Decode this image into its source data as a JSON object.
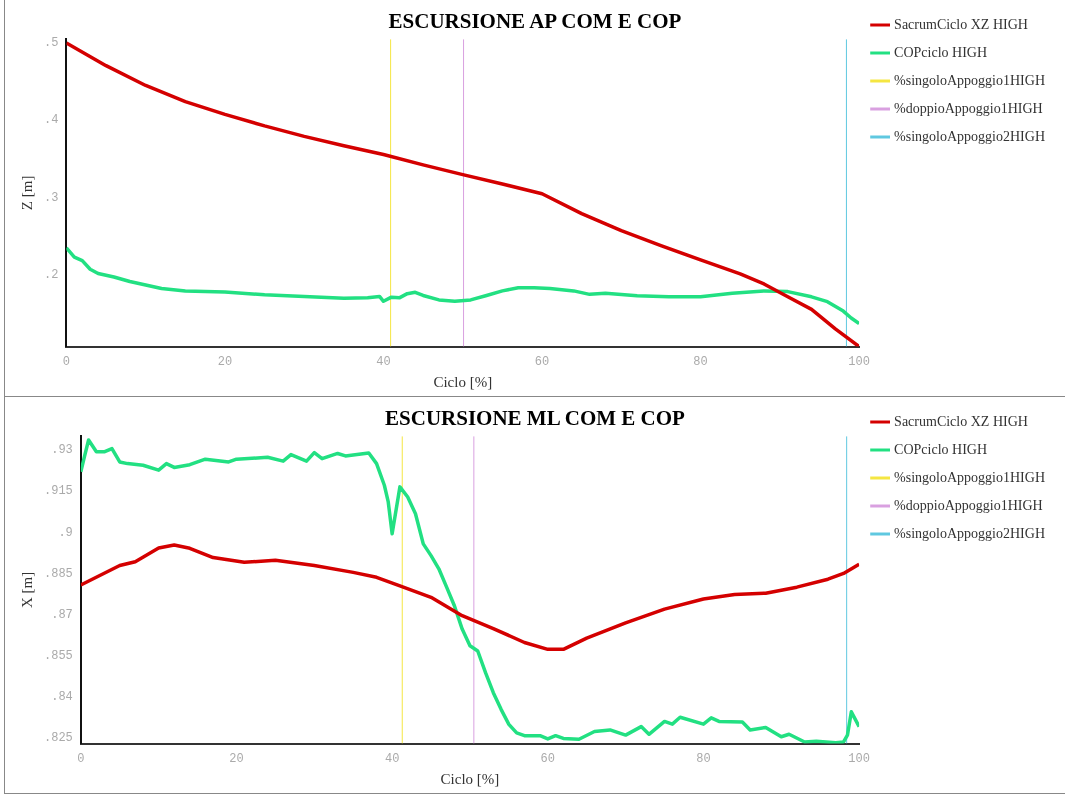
{
  "chart_data": [
    {
      "type": "line",
      "title": "ESCURSIONE AP COM E COP",
      "xlabel": "Ciclo [%]",
      "ylabel": "Z [m]",
      "xlim": [
        0,
        100
      ],
      "xticks": [
        0,
        20,
        40,
        60,
        80,
        100
      ],
      "ylim": [
        0.1066,
        0.505
      ],
      "yticks": [
        {
          "value": 0.2,
          "label": ".2"
        },
        {
          "value": 0.3,
          "label": ".3"
        },
        {
          "value": 0.4,
          "label": ".4"
        },
        {
          "value": 0.5,
          "label": ".5"
        }
      ],
      "grid": false,
      "legend": "right",
      "marker": "none",
      "line_style": "solid",
      "series": [
        {
          "name": "SacrumCiclo XZ HIGH",
          "color": "#d40000",
          "x": [
            0,
            5,
            10,
            15,
            20,
            25,
            30,
            35,
            40,
            45,
            50,
            55,
            60,
            65,
            70,
            75,
            80,
            85,
            88,
            91,
            94,
            97,
            100
          ],
          "values": [
            0.5,
            0.4707,
            0.445,
            0.4242,
            0.4075,
            0.3926,
            0.3791,
            0.3669,
            0.3556,
            0.3421,
            0.3295,
            0.3173,
            0.3047,
            0.2789,
            0.2568,
            0.2374,
            0.219,
            0.2009,
            0.1878,
            0.1711,
            0.1549,
            0.1296,
            0.1066
          ]
        },
        {
          "name": "COPciclo HIGH",
          "color": "#22e082",
          "x": [
            0,
            1,
            2,
            3,
            4,
            6,
            8,
            10,
            12,
            15,
            20,
            25,
            30,
            35,
            38,
            39.5,
            40,
            41,
            42,
            43,
            44,
            45,
            47,
            49,
            51,
            53,
            55,
            57,
            59,
            61,
            64,
            66,
            68,
            72,
            76,
            80,
            84,
            88,
            91,
            94,
            96,
            98,
            99,
            100
          ],
          "values": [
            0.2347,
            0.2226,
            0.2181,
            0.2068,
            0.2014,
            0.1968,
            0.191,
            0.1865,
            0.182,
            0.1788,
            0.1774,
            0.1738,
            0.1716,
            0.1693,
            0.1698,
            0.1716,
            0.1653,
            0.1707,
            0.1698,
            0.1752,
            0.177,
            0.1729,
            0.1671,
            0.1653,
            0.1671,
            0.1729,
            0.1788,
            0.1829,
            0.1829,
            0.182,
            0.1788,
            0.1743,
            0.1756,
            0.1725,
            0.1711,
            0.1711,
            0.1756,
            0.1788,
            0.1779,
            0.1711,
            0.1648,
            0.1526,
            0.1436,
            0.1364
          ]
        },
        {
          "name": "%singoloAppoggio1HIGH",
          "color": "#f5e642",
          "x": [
            40.9,
            40.9
          ],
          "values": [
            0.1066,
            0.505
          ]
        },
        {
          "name": "%doppioAppoggio1HIGH",
          "color": "#d9a0e0",
          "x": [
            50.1,
            50.1
          ],
          "values": [
            0.1066,
            0.505
          ]
        },
        {
          "name": "%singoloAppoggio2HIGH",
          "color": "#5fc8e0",
          "x": [
            98.4,
            98.4
          ],
          "values": [
            0.1066,
            0.505
          ]
        }
      ]
    },
    {
      "type": "line",
      "title": "ESCURSIONE ML COM E COP",
      "xlabel": "Ciclo [%]",
      "ylabel": "X [m]",
      "xlim": [
        0,
        100
      ],
      "xticks": [
        0,
        20,
        40,
        60,
        80,
        100
      ],
      "ylim": [
        0.8229,
        0.9351
      ],
      "yticks": [
        {
          "value": 0.825,
          "label": ".825"
        },
        {
          "value": 0.84,
          "label": ".84"
        },
        {
          "value": 0.855,
          "label": ".855"
        },
        {
          "value": 0.87,
          "label": ".87"
        },
        {
          "value": 0.885,
          "label": ".885"
        },
        {
          "value": 0.9,
          "label": ".9"
        },
        {
          "value": 0.915,
          "label": ".915"
        },
        {
          "value": 0.93,
          "label": ".93"
        }
      ],
      "grid": false,
      "legend": "right",
      "marker": "none",
      "line_style": "solid",
      "series": [
        {
          "name": "SacrumCiclo XZ HIGH",
          "color": "#d40000",
          "x": [
            0,
            5,
            7,
            10,
            12,
            14,
            17,
            21,
            25,
            30,
            35,
            38,
            41,
            45,
            49,
            53,
            57,
            60,
            62,
            65,
            70,
            75,
            80,
            84,
            88,
            92,
            96,
            98,
            100
          ],
          "values": [
            0.8808,
            0.8879,
            0.8893,
            0.8943,
            0.8954,
            0.8942,
            0.8908,
            0.8891,
            0.8898,
            0.8879,
            0.8854,
            0.8836,
            0.8805,
            0.8763,
            0.8696,
            0.8649,
            0.8598,
            0.8573,
            0.8573,
            0.8614,
            0.867,
            0.872,
            0.8757,
            0.8773,
            0.8778,
            0.88,
            0.8829,
            0.885,
            0.8884
          ]
        },
        {
          "name": "COPciclo HIGH",
          "color": "#22e082",
          "x": [
            0,
            0.5,
            1,
            2,
            3,
            4,
            5,
            6,
            8,
            10,
            11,
            12,
            14,
            16,
            19,
            20,
            24,
            26,
            27,
            29,
            30,
            31,
            33,
            34,
            37,
            38,
            39,
            39.5,
            40,
            41,
            42,
            43,
            44,
            45,
            46,
            47,
            48,
            49,
            50,
            51,
            52,
            53,
            54,
            55,
            56,
            57,
            59,
            60,
            61,
            62,
            64,
            66,
            68,
            70,
            72,
            73,
            75,
            76,
            77,
            80,
            81,
            82,
            85,
            86,
            88,
            90,
            91,
            93,
            94.5,
            97,
            98,
            98.5,
            99,
            100
          ],
          "values": [
            0.9221,
            0.928,
            0.9337,
            0.9294,
            0.9294,
            0.9306,
            0.9257,
            0.9251,
            0.9245,
            0.9227,
            0.9251,
            0.9237,
            0.9247,
            0.9267,
            0.9257,
            0.9267,
            0.9274,
            0.926,
            0.9284,
            0.926,
            0.9291,
            0.9269,
            0.9288,
            0.9279,
            0.929,
            0.9251,
            0.9172,
            0.9111,
            0.8995,
            0.9166,
            0.9129,
            0.9068,
            0.8958,
            0.8915,
            0.8867,
            0.88,
            0.8732,
            0.8647,
            0.8586,
            0.8567,
            0.8488,
            0.8415,
            0.8354,
            0.8299,
            0.8268,
            0.8258,
            0.8258,
            0.8246,
            0.8258,
            0.8248,
            0.8245,
            0.8273,
            0.8279,
            0.826,
            0.8291,
            0.8263,
            0.831,
            0.83,
            0.8325,
            0.83,
            0.8323,
            0.831,
            0.8308,
            0.8279,
            0.8288,
            0.8254,
            0.8263,
            0.8235,
            0.8238,
            0.8232,
            0.8235,
            0.826,
            0.8345,
            0.8291
          ]
        },
        {
          "name": "%singoloAppoggio1HIGH",
          "color": "#f5e642",
          "x": [
            41.3,
            41.3
          ],
          "values": [
            0.8229,
            0.9351
          ]
        },
        {
          "name": "%doppioAppoggio1HIGH",
          "color": "#d9a0e0",
          "x": [
            50.5,
            50.5
          ],
          "values": [
            0.8229,
            0.9351
          ]
        },
        {
          "name": "%singoloAppoggio2HIGH",
          "color": "#5fc8e0",
          "x": [
            98.4,
            98.4
          ],
          "values": [
            0.8229,
            0.9351
          ]
        }
      ]
    }
  ]
}
